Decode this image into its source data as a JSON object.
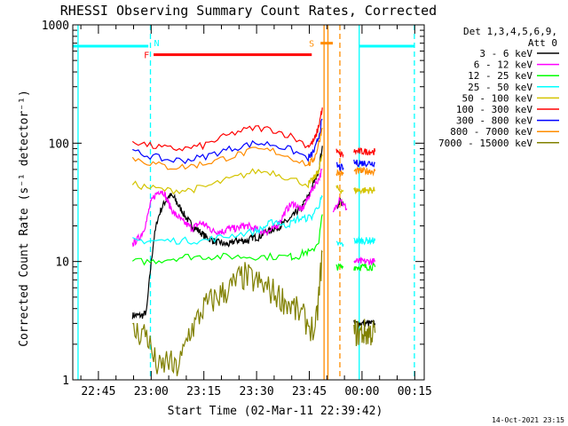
{
  "chart_data": {
    "type": "line",
    "title": "RHESSI Observing Summary Count Rates, Corrected",
    "xlabel": "Start Time (02-Mar-11 22:39:42)",
    "ylabel": "Corrected Count Rate (s⁻¹ detector⁻¹)",
    "yscale": "log",
    "ylim": [
      1,
      1000
    ],
    "xlim_minutes_after_start": [
      -2,
      98
    ],
    "x_tick_labels": [
      "22:45",
      "23:00",
      "23:15",
      "23:30",
      "23:45",
      "00:00",
      "00:15"
    ],
    "x_tick_minutes": [
      5.3,
      20.3,
      35.3,
      50.3,
      65.3,
      80.3,
      95.3
    ],
    "y_tick_labels": [
      "1",
      "10",
      "100",
      "1000"
    ],
    "y_tick_values": [
      1,
      10,
      100,
      1000
    ],
    "detectors_label": "Det 1,3,4,5,6,9,",
    "attenuator_label": "Att 0",
    "legend_position": "right",
    "timestamp": "14-Oct-2021 23:15",
    "series": [
      {
        "name": "3 - 6 keV",
        "color": "#000000",
        "segments": [
          {
            "x": [
              15,
              16,
              17,
              18,
              19,
              20,
              21,
              22,
              23,
              24,
              25,
              26,
              27,
              28,
              29,
              30,
              31,
              32,
              33,
              34,
              35,
              36,
              37,
              38,
              39,
              40,
              41,
              42,
              43,
              44,
              45,
              46,
              47,
              48,
              49,
              50,
              51,
              52,
              53,
              54,
              55,
              56,
              57,
              58,
              59,
              60,
              61,
              62,
              63,
              64,
              65,
              66,
              67,
              68,
              69
            ],
            "y": [
              3.5,
              3.5,
              3.5,
              3.5,
              3.8,
              8,
              15,
              22,
              27,
              31,
              35,
              36,
              34,
              30,
              27,
              24,
              22,
              20,
              19,
              18,
              17,
              16,
              15.5,
              15,
              14.5,
              14.5,
              14,
              14,
              14,
              15,
              15,
              15,
              15,
              15,
              16,
              16,
              16,
              17,
              18,
              18,
              19,
              19,
              20,
              21,
              22,
              23,
              25,
              27,
              28,
              32,
              35,
              42,
              50,
              60,
              95
            ]
          },
          {
            "x": [
              73,
              74,
              75
            ],
            "y": [
              28,
              33,
              30
            ]
          },
          {
            "x": [
              78,
              79,
              80,
              81,
              82,
              83,
              84
            ],
            "y": [
              3,
              3,
              3,
              3,
              3,
              3,
              3
            ]
          }
        ]
      },
      {
        "name": "6 - 12 keV",
        "color": "#ff00ff",
        "segments": [
          {
            "x": [
              15,
              16,
              17,
              18,
              19,
              20,
              21,
              22,
              23,
              24,
              25,
              26,
              27,
              28,
              29,
              30,
              31,
              32,
              33,
              34,
              35,
              36,
              37,
              38,
              39,
              40,
              41,
              42,
              43,
              44,
              45,
              46,
              47,
              48,
              49,
              50,
              51,
              52,
              53,
              54,
              55,
              56,
              57,
              58,
              59,
              60,
              61,
              62,
              63,
              64,
              65,
              66,
              67,
              68,
              69
            ],
            "y": [
              14,
              15,
              16,
              18,
              22,
              30,
              35,
              38,
              40,
              38,
              32,
              28,
              25,
              24,
              22,
              21,
              20,
              19,
              20,
              21,
              21,
              20,
              19,
              18,
              18,
              18,
              18,
              19,
              19,
              19,
              19,
              20,
              20,
              20,
              19,
              19,
              18,
              18,
              18,
              18,
              19,
              20,
              22,
              25,
              28,
              30,
              31,
              29,
              27,
              30,
              35,
              40,
              45,
              50,
              60
            ]
          },
          {
            "x": [
              72,
              73,
              74,
              75,
              76
            ],
            "y": [
              25,
              30,
              35,
              30,
              28
            ]
          },
          {
            "x": [
              78,
              79,
              80,
              81,
              82,
              83,
              84
            ],
            "y": [
              10,
              10,
              10,
              10,
              10,
              10,
              10
            ]
          }
        ]
      },
      {
        "name": "12 - 25 keV",
        "color": "#00ff00",
        "segments": [
          {
            "x": [
              15,
              20,
              25,
              30,
              35,
              40,
              45,
              50,
              55,
              60,
              62,
              64,
              66,
              68,
              69
            ],
            "y": [
              10,
              10,
              10.5,
              11,
              11,
              11,
              11,
              11,
              11,
              11,
              11,
              12,
              12,
              15,
              25
            ]
          },
          {
            "x": [
              73,
              74,
              75
            ],
            "y": [
              9,
              9,
              9
            ]
          },
          {
            "x": [
              78,
              79,
              80,
              81,
              82,
              83,
              84
            ],
            "y": [
              9,
              9,
              9,
              9,
              9,
              9,
              9
            ]
          }
        ]
      },
      {
        "name": "25 - 50 keV",
        "color": "#00ffff",
        "segments": [
          {
            "x": [
              15,
              20,
              25,
              30,
              35,
              40,
              45,
              50,
              52,
              54,
              56,
              58,
              60,
              62,
              64,
              66,
              68,
              69
            ],
            "y": [
              15,
              15,
              15,
              15,
              15,
              16,
              17,
              18,
              19,
              21,
              22,
              20,
              21,
              23,
              23,
              24,
              30,
              35
            ]
          },
          {
            "x": [
              73,
              74,
              75
            ],
            "y": [
              14,
              14,
              14
            ]
          },
          {
            "x": [
              78,
              79,
              80,
              81,
              82,
              83,
              84
            ],
            "y": [
              15,
              15,
              15,
              15,
              15,
              15,
              15
            ]
          }
        ]
      },
      {
        "name": "50 - 100 keV",
        "color": "#d4c400",
        "segments": [
          {
            "x": [
              15,
              20,
              25,
              30,
              35,
              40,
              45,
              50,
              55,
              60,
              65,
              66,
              67,
              68,
              69
            ],
            "y": [
              45,
              42,
              40,
              40,
              42,
              47,
              52,
              58,
              57,
              50,
              45,
              48,
              52,
              60,
              80
            ]
          },
          {
            "x": [
              73,
              74,
              75
            ],
            "y": [
              42,
              40,
              40
            ]
          },
          {
            "x": [
              78,
              79,
              80,
              81,
              82,
              83,
              84
            ],
            "y": [
              40,
              40,
              40,
              40,
              40,
              40,
              40
            ]
          }
        ]
      },
      {
        "name": "100 - 300 keV",
        "color": "#ff0000",
        "segments": [
          {
            "x": [
              15,
              20,
              25,
              30,
              35,
              40,
              45,
              50,
              55,
              60,
              65,
              66,
              67,
              68,
              69
            ],
            "y": [
              105,
              95,
              90,
              90,
              95,
              110,
              125,
              135,
              130,
              115,
              95,
              100,
              110,
              140,
              200
            ]
          },
          {
            "x": [
              73,
              74,
              75
            ],
            "y": [
              85,
              80,
              80
            ]
          },
          {
            "x": [
              78,
              79,
              80,
              81,
              82,
              83,
              84
            ],
            "y": [
              85,
              85,
              85,
              85,
              85,
              85,
              85
            ]
          }
        ]
      },
      {
        "name": "300 - 800 keV",
        "color": "#0000ff",
        "segments": [
          {
            "x": [
              15,
              20,
              25,
              30,
              35,
              40,
              45,
              50,
              55,
              60,
              65,
              66,
              67,
              68,
              69
            ],
            "y": [
              85,
              78,
              72,
              72,
              76,
              85,
              93,
              100,
              98,
              88,
              75,
              80,
              90,
              115,
              160
            ]
          },
          {
            "x": [
              73,
              74,
              75
            ],
            "y": [
              65,
              62,
              62
            ]
          },
          {
            "x": [
              78,
              79,
              80,
              81,
              82,
              83,
              84
            ],
            "y": [
              68,
              68,
              68,
              68,
              68,
              68,
              68
            ]
          }
        ]
      },
      {
        "name": "800 - 7000 keV",
        "color": "#ff8c00",
        "segments": [
          {
            "x": [
              15,
              20,
              25,
              30,
              35,
              40,
              45,
              50,
              55,
              60,
              65,
              66,
              67,
              68,
              69
            ],
            "y": [
              75,
              68,
              63,
              63,
              67,
              73,
              80,
              88,
              86,
              76,
              66,
              70,
              78,
              100,
              135
            ]
          },
          {
            "x": [
              73,
              74,
              75
            ],
            "y": [
              57,
              55,
              55
            ]
          },
          {
            "x": [
              78,
              79,
              80,
              81,
              82,
              83,
              84
            ],
            "y": [
              58,
              58,
              58,
              58,
              58,
              58,
              58
            ]
          }
        ]
      },
      {
        "name": "7000 - 15000 keV",
        "color": "#808000",
        "segments": [
          {
            "x": [
              15,
              17,
              19,
              21,
              23,
              25,
              27,
              29,
              31,
              33,
              35,
              37,
              39,
              41,
              43,
              45,
              47,
              49,
              51,
              53,
              55,
              57,
              59,
              61,
              63,
              65,
              67,
              68,
              69
            ],
            "y": [
              2.5,
              2.5,
              2.5,
              1.5,
              1.2,
              1.5,
              1.2,
              1.5,
              2.5,
              3,
              4,
              4.5,
              5,
              5.5,
              6,
              7,
              7.5,
              7,
              6.5,
              6,
              5.5,
              5,
              4.5,
              4,
              3.5,
              3,
              2.5,
              5,
              12
            ]
          },
          {
            "x": [
              78,
              79,
              80,
              81,
              82,
              83,
              84
            ],
            "y": [
              2.5,
              2.5,
              2.5,
              2.5,
              2.5,
              2.5,
              2.5
            ]
          }
        ]
      }
    ],
    "annotations": [
      {
        "label": "N",
        "color": "#00ffff",
        "x": 20.1
      },
      {
        "label": "F",
        "color": "#ff0000",
        "x": 21.0,
        "x_end": 66.0,
        "y": 560
      },
      {
        "label": "S",
        "color": "#ff8c00",
        "x": 68.5,
        "x_end": 72.0,
        "y": 700
      },
      {
        "label": "",
        "color": "#00ffff",
        "x": 79.5,
        "x_end": 95.2,
        "y": 660
      },
      {
        "label": "",
        "color": "#00ffff",
        "x": -2,
        "x_end": 19.5,
        "y": 660
      }
    ],
    "vertical_lines": [
      {
        "x": -0.5,
        "color": "#00ffff",
        "style": "solid"
      },
      {
        "x": 20.1,
        "color": "#00ffff",
        "style": "dashed"
      },
      {
        "x": 69.5,
        "color": "#ff8c00",
        "style": "solid"
      },
      {
        "x": 70.6,
        "color": "#ff8c00",
        "style": "solid"
      },
      {
        "x": 74.0,
        "color": "#ff8c00",
        "style": "dashed"
      },
      {
        "x": 79.5,
        "color": "#00ffff",
        "style": "solid"
      },
      {
        "x": 95.2,
        "color": "#00ffff",
        "style": "dashed"
      }
    ]
  }
}
